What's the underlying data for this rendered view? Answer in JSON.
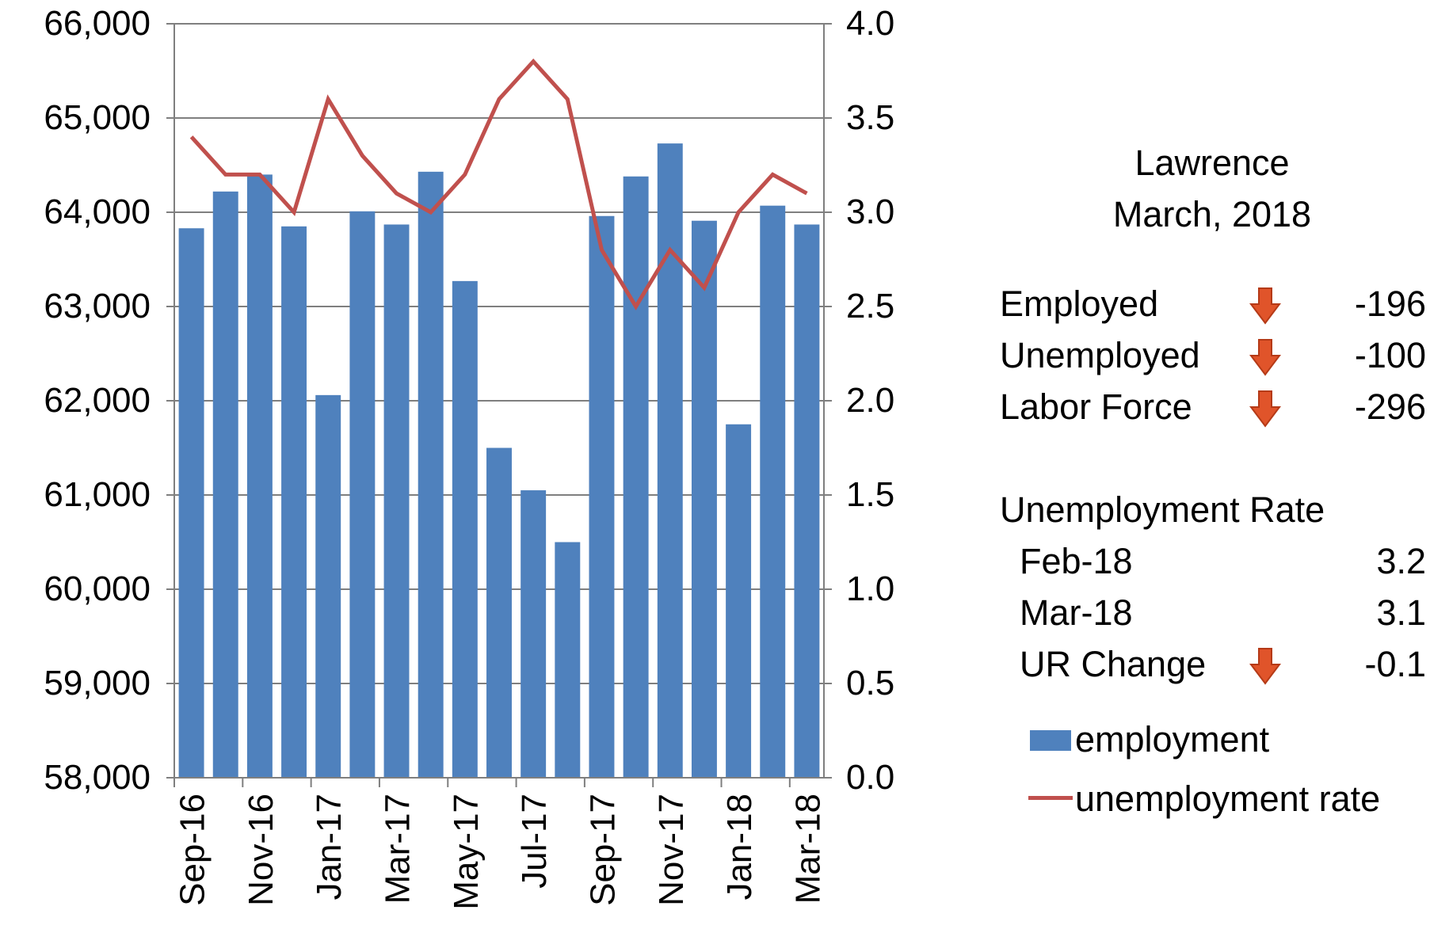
{
  "chart_data": {
    "type": "bar",
    "categories": [
      "Sep-16",
      "Oct-16",
      "Nov-16",
      "Dec-16",
      "Jan-17",
      "Feb-17",
      "Mar-17",
      "Apr-17",
      "May-17",
      "Jun-17",
      "Jul-17",
      "Aug-17",
      "Sep-17",
      "Oct-17",
      "Nov-17",
      "Dec-17",
      "Jan-18",
      "Feb-18",
      "Mar-18"
    ],
    "tick_labels": [
      "Sep-16",
      "",
      "Nov-16",
      "",
      "Jan-17",
      "",
      "Mar-17",
      "",
      "May-17",
      "",
      "Jul-17",
      "",
      "Sep-17",
      "",
      "Nov-17",
      "",
      "Jan-18",
      "",
      "Mar-18"
    ],
    "series": [
      {
        "name": "employment",
        "type": "bar",
        "axis": "left",
        "color": "#4f81bd",
        "values": [
          63830,
          64220,
          64400,
          63850,
          62060,
          64010,
          63870,
          64430,
          63270,
          61500,
          61050,
          60500,
          63960,
          64380,
          64730,
          63910,
          61750,
          64070,
          63870
        ]
      },
      {
        "name": "unemployment rate",
        "type": "line",
        "axis": "right",
        "color": "#c0504d",
        "values": [
          3.4,
          3.2,
          3.2,
          3.0,
          3.6,
          3.3,
          3.1,
          3.0,
          3.2,
          3.6,
          3.8,
          3.6,
          2.8,
          2.5,
          2.8,
          2.6,
          3.0,
          3.2,
          3.1
        ]
      }
    ],
    "y_left": {
      "ylim": [
        58000,
        66000
      ],
      "ticks": [
        "58,000",
        "59,000",
        "60,000",
        "61,000",
        "62,000",
        "63,000",
        "64,000",
        "65,000",
        "66,000"
      ]
    },
    "y_right": {
      "ylim": [
        0,
        4.0
      ],
      "ticks": [
        "0.0",
        "0.5",
        "1.0",
        "1.5",
        "2.0",
        "2.5",
        "3.0",
        "3.5",
        "4.0"
      ]
    },
    "grid": true,
    "legend_position": "right"
  },
  "panel": {
    "title_line1": "Lawrence",
    "title_line2": "March, 2018",
    "rows": [
      {
        "label": "Employed",
        "value": "-196",
        "arrow": "down-arrow-icon"
      },
      {
        "label": "Unemployed",
        "value": "-100",
        "arrow": "down-arrow-icon"
      },
      {
        "label": "Labor Force",
        "value": "-296",
        "arrow": "down-arrow-icon"
      }
    ],
    "ur_heading": "Unemployment Rate",
    "ur_rows": [
      {
        "label": "Feb-18",
        "value": "3.2"
      },
      {
        "label": "Mar-18",
        "value": "3.1"
      },
      {
        "label": "UR Change",
        "value": "-0.1",
        "arrow": "down-arrow-icon"
      }
    ],
    "legend": [
      {
        "label": "employment",
        "color": "#4f81bd"
      },
      {
        "label": "unemployment rate",
        "color": "#c0504d"
      }
    ],
    "arrow_color": "#e0542a"
  }
}
